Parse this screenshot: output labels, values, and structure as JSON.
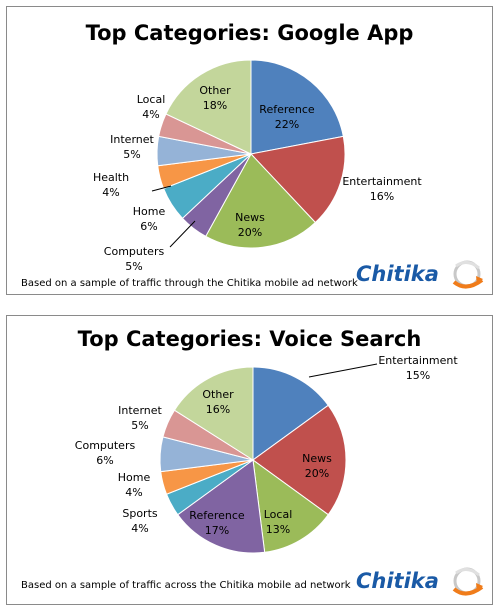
{
  "colors": {
    "reference": "#4f81bd",
    "entertainment": "#c0504d",
    "news": "#9bbb59",
    "computers": "#8064a2",
    "home": "#4bacc6",
    "health": "#f79646",
    "internet": "#95b3d7",
    "local": "#d99694",
    "other": "#c3d69b"
  },
  "brand": {
    "name": "Chitika",
    "icon": "swirl-globe-icon"
  },
  "chart_data": [
    {
      "type": "pie",
      "title": "Top Categories: Google App",
      "footnote": "Based on a sample of traffic through the Chitika mobile ad network",
      "slices": [
        {
          "label": "Reference",
          "pct_label": "22%",
          "value": 22,
          "color": "#4f81bd"
        },
        {
          "label": "Entertainment",
          "pct_label": "16%",
          "value": 16,
          "color": "#c0504d"
        },
        {
          "label": "News",
          "pct_label": "20%",
          "value": 20,
          "color": "#9bbb59"
        },
        {
          "label": "Computers",
          "pct_label": "5%",
          "value": 5,
          "color": "#8064a2"
        },
        {
          "label": "Home",
          "pct_label": "6%",
          "value": 6,
          "color": "#4bacc6"
        },
        {
          "label": "Health",
          "pct_label": "4%",
          "value": 4,
          "color": "#f79646"
        },
        {
          "label": "Internet",
          "pct_label": "5%",
          "value": 5,
          "color": "#95b3d7"
        },
        {
          "label": "Local",
          "pct_label": "4%",
          "value": 4,
          "color": "#d99694"
        },
        {
          "label": "Other",
          "pct_label": "18%",
          "value": 18,
          "color": "#c3d69b"
        }
      ]
    },
    {
      "type": "pie",
      "title": "Top Categories: Voice Search",
      "footnote": "Based on a sample of traffic across the Chitika  mobile ad network",
      "slices": [
        {
          "label": "Entertainment",
          "pct_label": "15%",
          "value": 15,
          "color": "#4f81bd"
        },
        {
          "label": "News",
          "pct_label": "20%",
          "value": 20,
          "color": "#c0504d"
        },
        {
          "label": "Local",
          "pct_label": "13%",
          "value": 13,
          "color": "#9bbb59"
        },
        {
          "label": "Reference",
          "pct_label": "17%",
          "value": 17,
          "color": "#8064a2"
        },
        {
          "label": "Sports",
          "pct_label": "4%",
          "value": 4,
          "color": "#4bacc6"
        },
        {
          "label": "Home",
          "pct_label": "4%",
          "value": 4,
          "color": "#f79646"
        },
        {
          "label": "Computers",
          "pct_label": "6%",
          "value": 6,
          "color": "#95b3d7"
        },
        {
          "label": "Internet",
          "pct_label": "5%",
          "value": 5,
          "color": "#d99694"
        },
        {
          "label": "Other",
          "pct_label": "16%",
          "value": 16,
          "color": "#c3d69b"
        }
      ]
    }
  ]
}
